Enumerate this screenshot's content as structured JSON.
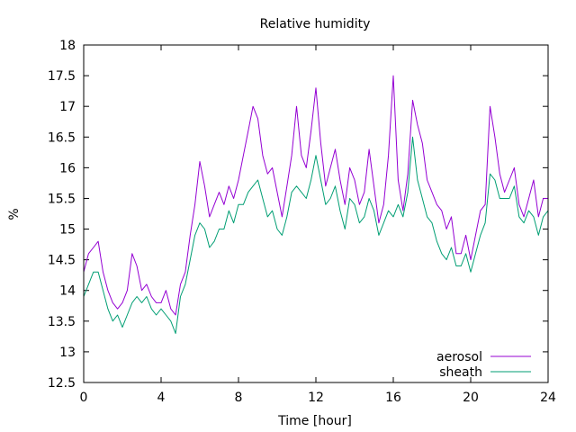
{
  "chart_data": {
    "type": "line",
    "title": "Relative humidity",
    "xlabel": "Time [hour]",
    "ylabel": "%",
    "xlim": [
      0,
      24
    ],
    "ylim": [
      12.5,
      18
    ],
    "x_ticks": [
      0,
      4,
      8,
      12,
      16,
      20,
      24
    ],
    "y_ticks": [
      12.5,
      13,
      13.5,
      14,
      14.5,
      15,
      15.5,
      16,
      16.5,
      17,
      17.5,
      18
    ],
    "grid": false,
    "legend_position": "bottom-right",
    "x": [
      0,
      0.25,
      0.5,
      0.75,
      1,
      1.25,
      1.5,
      1.75,
      2,
      2.25,
      2.5,
      2.75,
      3,
      3.25,
      3.5,
      3.75,
      4,
      4.25,
      4.5,
      4.75,
      5,
      5.25,
      5.5,
      5.75,
      6,
      6.25,
      6.5,
      6.75,
      7,
      7.25,
      7.5,
      7.75,
      8,
      8.25,
      8.5,
      8.75,
      9,
      9.25,
      9.5,
      9.75,
      10,
      10.25,
      10.5,
      10.75,
      11,
      11.25,
      11.5,
      11.75,
      12,
      12.25,
      12.5,
      12.75,
      13,
      13.25,
      13.5,
      13.75,
      14,
      14.25,
      14.5,
      14.75,
      15,
      15.25,
      15.5,
      15.75,
      16,
      16.25,
      16.5,
      16.75,
      17,
      17.25,
      17.5,
      17.75,
      18,
      18.25,
      18.5,
      18.75,
      19,
      19.25,
      19.5,
      19.75,
      20,
      20.25,
      20.5,
      20.75,
      21,
      21.25,
      21.5,
      21.75,
      22,
      22.25,
      22.5,
      22.75,
      23,
      23.25,
      23.5,
      23.75,
      24
    ],
    "series": [
      {
        "name": "aerosol",
        "color": "#9400d3",
        "values": [
          14.3,
          14.6,
          14.7,
          14.8,
          14.3,
          14.0,
          13.8,
          13.7,
          13.8,
          14.0,
          14.6,
          14.4,
          14.0,
          14.1,
          13.9,
          13.8,
          13.8,
          14.0,
          13.7,
          13.6,
          14.1,
          14.3,
          14.9,
          15.4,
          16.1,
          15.7,
          15.2,
          15.4,
          15.6,
          15.4,
          15.7,
          15.5,
          15.8,
          16.2,
          16.6,
          17.0,
          16.8,
          16.2,
          15.9,
          16.0,
          15.6,
          15.2,
          15.7,
          16.2,
          17.0,
          16.2,
          16.0,
          16.6,
          17.3,
          16.4,
          15.7,
          16.0,
          16.3,
          15.8,
          15.4,
          16.0,
          15.8,
          15.4,
          15.6,
          16.3,
          15.7,
          15.1,
          15.4,
          16.2,
          17.5,
          15.8,
          15.3,
          15.9,
          17.1,
          16.7,
          16.4,
          15.8,
          15.6,
          15.4,
          15.3,
          15.0,
          15.2,
          14.6,
          14.6,
          14.9,
          14.5,
          14.9,
          15.3,
          15.4,
          17.0,
          16.5,
          15.9,
          15.6,
          15.8,
          16.0,
          15.4,
          15.2,
          15.5,
          15.8,
          15.2,
          15.5,
          15.5
        ]
      },
      {
        "name": "sheath",
        "color": "#009e73",
        "values": [
          13.9,
          14.1,
          14.3,
          14.3,
          14.0,
          13.7,
          13.5,
          13.6,
          13.4,
          13.6,
          13.8,
          13.9,
          13.8,
          13.9,
          13.7,
          13.6,
          13.7,
          13.6,
          13.5,
          13.3,
          13.9,
          14.1,
          14.5,
          14.9,
          15.1,
          15.0,
          14.7,
          14.8,
          15.0,
          15.0,
          15.3,
          15.1,
          15.4,
          15.4,
          15.6,
          15.7,
          15.8,
          15.5,
          15.2,
          15.3,
          15.0,
          14.9,
          15.2,
          15.6,
          15.7,
          15.6,
          15.5,
          15.8,
          16.2,
          15.8,
          15.4,
          15.5,
          15.7,
          15.3,
          15.0,
          15.5,
          15.4,
          15.1,
          15.2,
          15.5,
          15.3,
          14.9,
          15.1,
          15.3,
          15.2,
          15.4,
          15.2,
          15.6,
          16.5,
          15.8,
          15.5,
          15.2,
          15.1,
          14.8,
          14.6,
          14.5,
          14.7,
          14.4,
          14.4,
          14.6,
          14.3,
          14.6,
          14.9,
          15.1,
          15.9,
          15.8,
          15.5,
          15.5,
          15.5,
          15.7,
          15.2,
          15.1,
          15.3,
          15.2,
          14.9,
          15.2,
          15.3
        ]
      }
    ]
  }
}
